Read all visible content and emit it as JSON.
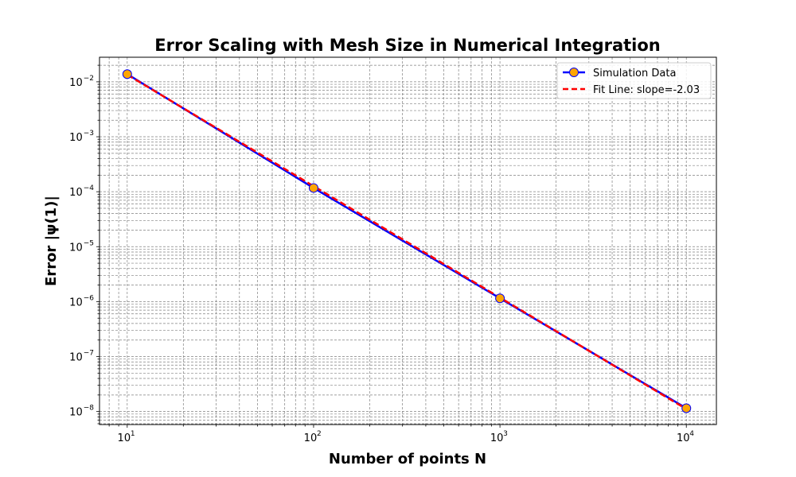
{
  "chart_data": {
    "type": "line",
    "title": "Error Scaling with Mesh Size in Numerical Integration",
    "xlabel": "Number of points N",
    "ylabel": "Error |ψ(1)|",
    "xscale": "log",
    "yscale": "log",
    "xlim": [
      7.1,
      14500
    ],
    "ylim": [
      5.8e-09,
      0.028
    ],
    "grid": "on (major and minor, dashed)",
    "legend_position": "top-right",
    "x_ticks": [
      {
        "value": 10,
        "base": "10",
        "exp": "1"
      },
      {
        "value": 100,
        "base": "10",
        "exp": "2"
      },
      {
        "value": 1000,
        "base": "10",
        "exp": "3"
      },
      {
        "value": 10000,
        "base": "10",
        "exp": "4"
      }
    ],
    "y_ticks": [
      {
        "value": 1e-08,
        "base": "10",
        "exp": "−8"
      },
      {
        "value": 1e-07,
        "base": "10",
        "exp": "−7"
      },
      {
        "value": 1e-06,
        "base": "10",
        "exp": "−6"
      },
      {
        "value": 1e-05,
        "base": "10",
        "exp": "−5"
      },
      {
        "value": 0.0001,
        "base": "10",
        "exp": "−4"
      },
      {
        "value": 0.001,
        "base": "10",
        "exp": "−3"
      },
      {
        "value": 0.01,
        "base": "10",
        "exp": "−2"
      }
    ],
    "series": [
      {
        "name": "Simulation Data",
        "style": "solid line with circle markers",
        "color": "#0000ff",
        "marker_color": "#ffa500",
        "x": [
          10,
          100,
          1000,
          10000
        ],
        "y": [
          0.0138,
          0.000117,
          1.15e-06,
          1.15e-08
        ]
      },
      {
        "name": "Fit Line: slope=-2.03",
        "style": "dashed line",
        "color": "#ff0000",
        "x": [
          10,
          10000
        ],
        "y": [
          0.0135,
          1.11e-08
        ]
      }
    ]
  }
}
